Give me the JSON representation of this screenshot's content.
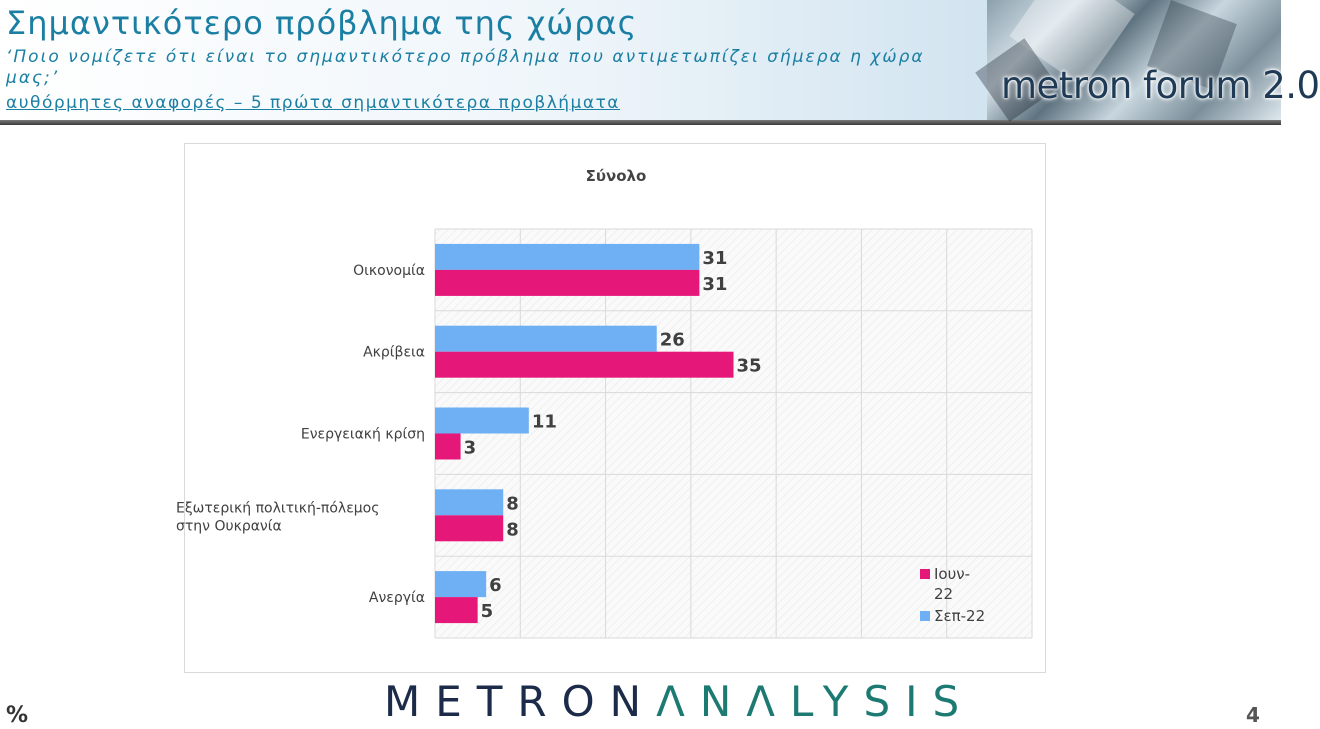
{
  "header": {
    "title": "Σημαντικότερο πρόβλημα της χώρας",
    "question": "‘Ποιο νομίζετε ότι  είναι το σημαντικότερο πρόβλημα που αντιμετωπίζει σήμερα η χώρα μας;’",
    "subnote": "αυθόρμητες αναφορές – 5 πρώτα σημαντικότερα προβλήματα",
    "logo_text": "metron forum 2.0"
  },
  "footer": {
    "brand_part1": "METRON",
    "brand_part2": "ΛNΛLYSIS",
    "percent_symbol": "%",
    "page_number": "4"
  },
  "colors": {
    "series_jun": "#e5187a",
    "series_sep": "#6fb0f4",
    "title_blue": "#1a7fa3"
  },
  "chart_data": {
    "type": "bar",
    "orientation": "horizontal",
    "title": "Σύνολο",
    "categories": [
      "Οικονομία",
      "Ακρίβεια",
      "Ενεργειακή κρίση",
      "Εξωτερική πολιτική-πόλεμος στην Ουκρανία",
      "Ανεργία"
    ],
    "series": [
      {
        "name": "Σεπ-22",
        "values": [
          31,
          26,
          11,
          8,
          6
        ],
        "color": "#6fb0f4"
      },
      {
        "name": "Ιουν-22",
        "values": [
          31,
          35,
          3,
          8,
          5
        ],
        "color": "#e5187a"
      }
    ],
    "xlim": [
      0,
      70
    ],
    "grid": true,
    "legend_position": "bottom-right"
  }
}
